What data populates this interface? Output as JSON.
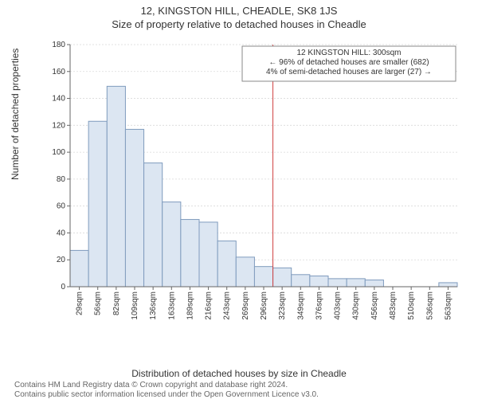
{
  "title_line1": "12, KINGSTON HILL, CHEADLE, SK8 1JS",
  "title_line2": "Size of property relative to detached houses in Cheadle",
  "y_axis_label": "Number of detached properties",
  "x_axis_label": "Distribution of detached houses by size in Cheadle",
  "footer_line1": "Contains HM Land Registry data © Crown copyright and database right 2024.",
  "footer_line2": "Contains public sector information licensed under the Open Government Licence v3.0.",
  "annotation": {
    "line1": "12 KINGSTON HILL: 300sqm",
    "line2": "← 96% of detached houses are smaller (682)",
    "line3": "4% of semi-detached houses are larger (27) →",
    "box_border": "#888888",
    "box_bg": "#ffffff",
    "fontsize": 10
  },
  "histogram": {
    "type": "histogram",
    "categories": [
      "29sqm",
      "56sqm",
      "82sqm",
      "109sqm",
      "136sqm",
      "163sqm",
      "189sqm",
      "216sqm",
      "243sqm",
      "269sqm",
      "296sqm",
      "323sqm",
      "349sqm",
      "376sqm",
      "403sqm",
      "430sqm",
      "456sqm",
      "483sqm",
      "510sqm",
      "536sqm",
      "563sqm"
    ],
    "values": [
      27,
      123,
      149,
      117,
      92,
      63,
      50,
      48,
      34,
      22,
      15,
      14,
      9,
      8,
      6,
      6,
      5,
      0,
      0,
      0,
      3
    ],
    "bar_fill": "#dce6f2",
    "bar_stroke": "#7f9bbd",
    "bar_stroke_width": 1,
    "ylim": [
      0,
      180
    ],
    "ytick_step": 20,
    "grid_color": "#d9d9d9",
    "axis_color": "#666666",
    "tick_fontsize": 10,
    "background": "#ffffff",
    "ref_line_x_category": "296sqm",
    "ref_line_color": "#d04040",
    "ref_line_width": 1
  }
}
